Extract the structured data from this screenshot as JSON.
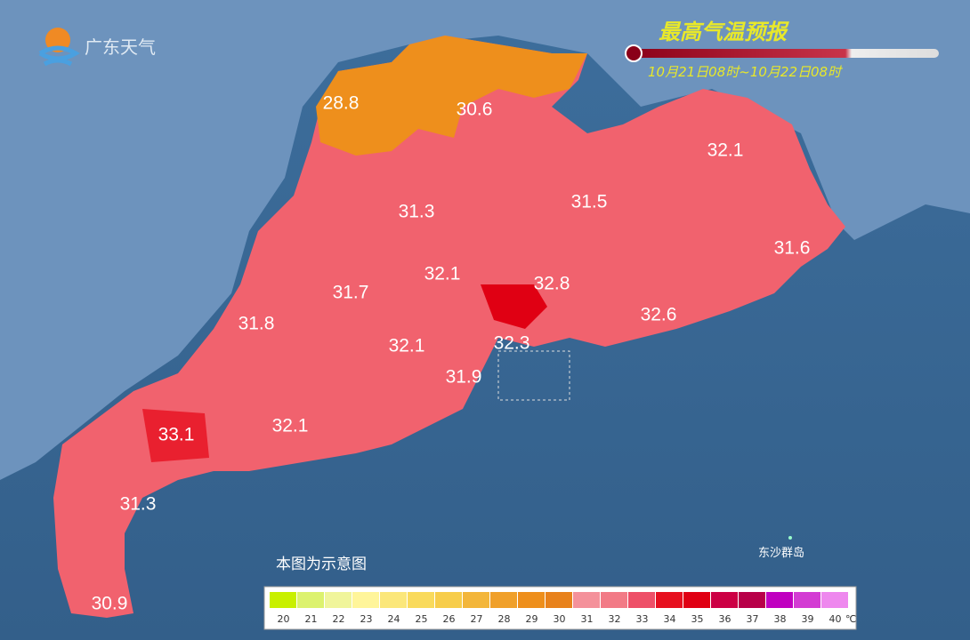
{
  "logo": "广东天气",
  "title": "最高气温预报",
  "period": "10月21日08时~10月22日08时",
  "note": "本图为示意图",
  "island": "东沙群岛",
  "temperatures": [
    28.8,
    30.6,
    32.1,
    31.3,
    31.5,
    31.6,
    32.1,
    32.8,
    31.7,
    31.8,
    32.6,
    32.1,
    32.3,
    31.9,
    33.1,
    32.1,
    31.3,
    30.9
  ],
  "legend": {
    "labels": [
      20,
      21,
      22,
      23,
      24,
      25,
      26,
      27,
      28,
      29,
      30,
      31,
      32,
      33,
      34,
      35,
      36,
      37,
      38,
      39,
      40
    ],
    "colors": [
      "#c8f000",
      "#dcf26e",
      "#f0f59b",
      "#fff59a",
      "#fbe77a",
      "#f9da5c",
      "#f7cd4a",
      "#f3b63a",
      "#f0a02a",
      "#ee8f1c",
      "#e8821c",
      "#f4919a",
      "#f27a86",
      "#ee5068",
      "#e7101f",
      "#e00013",
      "#cc0044",
      "#b80048",
      "#c000c0",
      "#d33cd3",
      "#ee88ee"
    ],
    "unit": "℃"
  }
}
